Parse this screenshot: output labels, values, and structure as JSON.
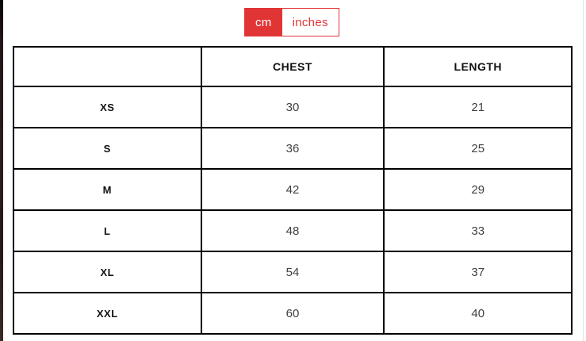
{
  "unit_toggle": {
    "options": [
      {
        "label": "cm",
        "active": true
      },
      {
        "label": "inches",
        "active": false
      }
    ]
  },
  "size_table": {
    "columns": [
      "CHEST",
      "LENGTH"
    ],
    "rows": [
      {
        "size": "XS",
        "chest": "30",
        "length": "21"
      },
      {
        "size": "S",
        "chest": "36",
        "length": "25"
      },
      {
        "size": "M",
        "chest": "42",
        "length": "29"
      },
      {
        "size": "L",
        "chest": "48",
        "length": "33"
      },
      {
        "size": "XL",
        "chest": "54",
        "length": "37"
      },
      {
        "size": "XXL",
        "chest": "60",
        "length": "40"
      }
    ]
  },
  "colors": {
    "accent_red": "#e13535",
    "table_border": "#000000",
    "header_text": "#111111",
    "value_text": "#3f3f3f",
    "left_strip": "#271a19"
  }
}
